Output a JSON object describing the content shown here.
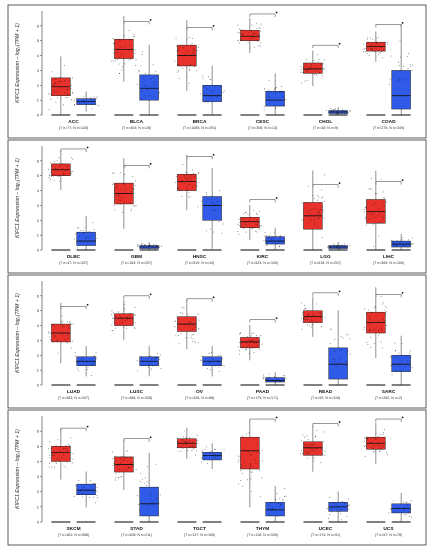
{
  "colors": {
    "tumor": "#e8312b",
    "normal": "#2f5be8",
    "points": "#111111",
    "frame": "#333333",
    "sig": "#111111"
  },
  "chart_data": [
    {
      "type": "box",
      "ylabel": "KIFC1 Expression – log₂(TPM + 1)",
      "ylim": [
        0,
        7
      ],
      "yticks": [
        0,
        1,
        2,
        3,
        4,
        5,
        6
      ],
      "categories": [
        {
          "name": "ACC",
          "n": "(T n=77; N n=128)",
          "sig": false,
          "tumor": {
            "q1": 1.3,
            "med": 1.9,
            "q3": 2.5
          },
          "normal": {
            "q1": 0.7,
            "med": 0.9,
            "q3": 1.1
          }
        },
        {
          "name": "BLCA",
          "n": "(T n=404; N n=28)",
          "sig": true,
          "tumor": {
            "q1": 3.8,
            "med": 4.4,
            "q3": 5.1
          },
          "normal": {
            "q1": 1.0,
            "med": 1.8,
            "q3": 2.7
          }
        },
        {
          "name": "BRCA",
          "n": "(T n=1085; N n=291)",
          "sig": true,
          "tumor": {
            "q1": 3.3,
            "med": 4.0,
            "q3": 4.7
          },
          "normal": {
            "q1": 0.9,
            "med": 1.3,
            "q3": 2.0
          }
        },
        {
          "name": "CESC",
          "n": "(T n=306; N n=13)",
          "sig": true,
          "tumor": {
            "q1": 5.0,
            "med": 5.3,
            "q3": 5.7
          },
          "normal": {
            "q1": 0.6,
            "med": 1.0,
            "q3": 1.6
          }
        },
        {
          "name": "CHOL",
          "n": "(T n=36; N n=9)",
          "sig": true,
          "tumor": {
            "q1": 2.8,
            "med": 3.1,
            "q3": 3.5
          },
          "normal": {
            "q1": 0.1,
            "med": 0.2,
            "q3": 0.3
          }
        },
        {
          "name": "COAD",
          "n": "(T n=275; N n=349)",
          "sig": true,
          "tumor": {
            "q1": 4.3,
            "med": 4.6,
            "q3": 4.9
          },
          "normal": {
            "q1": 0.4,
            "med": 1.3,
            "q3": 3.0
          }
        }
      ]
    },
    {
      "type": "box",
      "ylabel": "KIFC1 Expression – log₂(TPM + 1)",
      "ylim": [
        0,
        7
      ],
      "yticks": [
        0,
        1,
        2,
        3,
        4,
        5,
        6
      ],
      "categories": [
        {
          "name": "DLBC",
          "n": "(T n=47; N n=337)",
          "sig": true,
          "tumor": {
            "q1": 5.0,
            "med": 5.4,
            "q3": 5.8
          },
          "normal": {
            "q1": 0.3,
            "med": 0.6,
            "q3": 1.2
          }
        },
        {
          "name": "GBM",
          "n": "(T n=163; N n=207)",
          "sig": true,
          "tumor": {
            "q1": 3.1,
            "med": 3.8,
            "q3": 4.5
          },
          "normal": {
            "q1": 0.1,
            "med": 0.2,
            "q3": 0.3
          }
        },
        {
          "name": "HNSC",
          "n": "(T n=519; N n=44)",
          "sig": true,
          "tumor": {
            "q1": 4.0,
            "med": 4.6,
            "q3": 5.1
          },
          "normal": {
            "q1": 2.0,
            "med": 3.0,
            "q3": 3.6
          }
        },
        {
          "name": "KIRC",
          "n": "(T n=523; N n=100)",
          "sig": true,
          "tumor": {
            "q1": 1.5,
            "med": 1.9,
            "q3": 2.2
          },
          "normal": {
            "q1": 0.4,
            "med": 0.6,
            "q3": 0.9
          }
        },
        {
          "name": "LGG",
          "n": "(T n=518; N n=207)",
          "sig": true,
          "tumor": {
            "q1": 1.4,
            "med": 2.3,
            "q3": 3.2
          },
          "normal": {
            "q1": 0.1,
            "med": 0.2,
            "q3": 0.3
          }
        },
        {
          "name": "LIHC",
          "n": "(T n=369; N n=160)",
          "sig": true,
          "tumor": {
            "q1": 1.8,
            "med": 2.6,
            "q3": 3.4
          },
          "normal": {
            "q1": 0.2,
            "med": 0.4,
            "q3": 0.6
          }
        }
      ]
    },
    {
      "type": "box",
      "ylabel": "KIFC1 Expression – log₂(TPM + 1)",
      "ylim": [
        0,
        7
      ],
      "yticks": [
        0,
        1,
        2,
        3,
        4,
        5,
        6
      ],
      "categories": [
        {
          "name": "LUAD",
          "n": "(T n=483; N n=347)",
          "sig": true,
          "tumor": {
            "q1": 2.9,
            "med": 3.5,
            "q3": 4.1
          },
          "normal": {
            "q1": 1.3,
            "med": 1.6,
            "q3": 1.9
          }
        },
        {
          "name": "LUSC",
          "n": "(T n=486; N n=338)",
          "sig": true,
          "tumor": {
            "q1": 4.0,
            "med": 4.5,
            "q3": 4.8
          },
          "normal": {
            "q1": 1.3,
            "med": 1.6,
            "q3": 1.9
          }
        },
        {
          "name": "OV",
          "n": "(T n=426; N n=88)",
          "sig": true,
          "tumor": {
            "q1": 3.6,
            "med": 4.1,
            "q3": 4.6
          },
          "normal": {
            "q1": 1.3,
            "med": 1.6,
            "q3": 1.9
          }
        },
        {
          "name": "PAAD",
          "n": "(T n=179; N n=171)",
          "sig": true,
          "tumor": {
            "q1": 2.5,
            "med": 2.9,
            "q3": 3.2
          },
          "normal": {
            "q1": 0.2,
            "med": 0.3,
            "q3": 0.5
          }
        },
        {
          "name": "READ",
          "n": "(T n=92; N n=318)",
          "sig": true,
          "tumor": {
            "q1": 4.2,
            "med": 4.6,
            "q3": 5.0
          },
          "normal": {
            "q1": 0.4,
            "med": 1.4,
            "q3": 2.5
          }
        },
        {
          "name": "SARC",
          "n": "(T n=262; N n=2)",
          "sig": true,
          "tumor": {
            "q1": 3.5,
            "med": 4.2,
            "q3": 4.9
          },
          "normal": {
            "q1": 0.9,
            "med": 1.4,
            "q3": 2.0
          }
        }
      ]
    },
    {
      "type": "box",
      "ylabel": "KIFC1 Expression – log₂(TPM + 1)",
      "ylim": [
        0,
        7
      ],
      "yticks": [
        0,
        1,
        2,
        3,
        4,
        5,
        6
      ],
      "categories": [
        {
          "name": "SKCM",
          "n": "(T n=461; N n=558)",
          "sig": true,
          "tumor": {
            "q1": 4.0,
            "med": 4.6,
            "q3": 5.0
          },
          "normal": {
            "q1": 1.8,
            "med": 2.1,
            "q3": 2.5
          }
        },
        {
          "name": "STAD",
          "n": "(T n=408; N n=211)",
          "sig": true,
          "tumor": {
            "q1": 3.3,
            "med": 3.8,
            "q3": 4.3
          },
          "normal": {
            "q1": 0.4,
            "med": 1.2,
            "q3": 2.3
          }
        },
        {
          "name": "TGCT",
          "n": "(T n=137; N n=165)",
          "sig": false,
          "tumor": {
            "q1": 4.9,
            "med": 5.2,
            "q3": 5.5
          },
          "normal": {
            "q1": 4.1,
            "med": 4.4,
            "q3": 4.6
          }
        },
        {
          "name": "THYM",
          "n": "(T n=118; N n=339)",
          "sig": true,
          "tumor": {
            "q1": 3.5,
            "med": 4.7,
            "q3": 5.6
          },
          "normal": {
            "q1": 0.4,
            "med": 0.8,
            "q3": 1.3
          }
        },
        {
          "name": "UCEC",
          "n": "(T n=174; N n=91)",
          "sig": true,
          "tumor": {
            "q1": 4.4,
            "med": 4.9,
            "q3": 5.3
          },
          "normal": {
            "q1": 0.7,
            "med": 1.0,
            "q3": 1.3
          }
        },
        {
          "name": "UCS",
          "n": "(T n=57; N n=78)",
          "sig": true,
          "tumor": {
            "q1": 4.8,
            "med": 5.2,
            "q3": 5.6
          },
          "normal": {
            "q1": 0.6,
            "med": 0.9,
            "q3": 1.2
          }
        }
      ]
    }
  ]
}
